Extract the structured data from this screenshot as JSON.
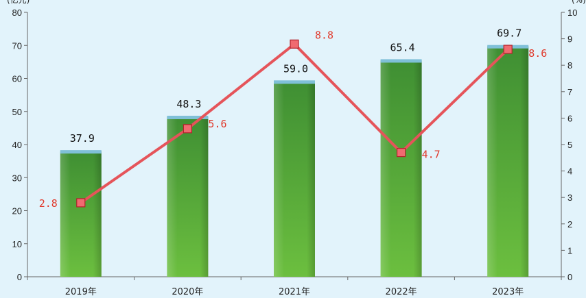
{
  "chart_data": {
    "type": "bar",
    "categories": [
      "2019年",
      "2020年",
      "2021年",
      "2022年",
      "2023年"
    ],
    "series": [
      {
        "name": "",
        "type": "bar",
        "axis": "left",
        "values": [
          37.9,
          48.3,
          59.0,
          65.4,
          69.7
        ],
        "labels": [
          "37.9",
          "48.3",
          "59.0",
          "65.4",
          "69.7"
        ],
        "color": "#4e9e3a"
      },
      {
        "name": "",
        "type": "line",
        "axis": "right",
        "values": [
          2.8,
          5.6,
          8.8,
          4.7,
          8.6
        ],
        "labels": [
          "2.8",
          "5.6",
          "8.8",
          "4.7",
          "8.6"
        ],
        "color": "#e5545a"
      }
    ],
    "y_left": {
      "unit": "(亿元)",
      "ylim": [
        0,
        80
      ],
      "ticks": [
        "0",
        "10",
        "20",
        "30",
        "40",
        "50",
        "60",
        "70",
        "80"
      ]
    },
    "y_right": {
      "unit": "(%)",
      "ylim": [
        0,
        10
      ],
      "ticks": [
        "0",
        "1",
        "2",
        "3",
        "4",
        "5",
        "6",
        "7",
        "8",
        "9",
        "10"
      ]
    },
    "title": "",
    "xlabel": "",
    "grid": false,
    "legend": "none",
    "colors": {
      "background": "#e2f3fb",
      "bar": "#4e9e3a",
      "bar_top": "#7fc0d8",
      "line": "#e5545a",
      "line_label": "#e0392b"
    }
  }
}
